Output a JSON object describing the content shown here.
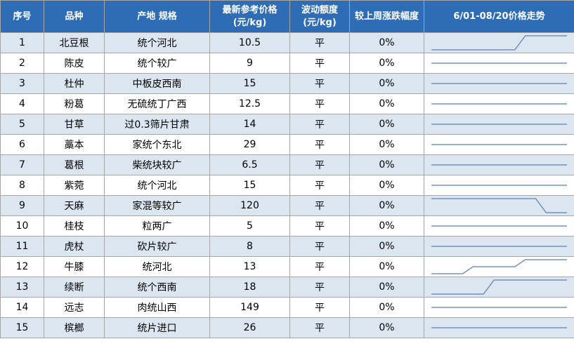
{
  "header": {
    "col_index": "序号",
    "col_variety": "品种",
    "col_origin": "产地 规格",
    "col_price_line1": "最新参考价格",
    "col_price_line2": "(元/kg)",
    "col_fluct_line1": "波动额度",
    "col_fluct_line2": "(元/kg)",
    "col_change": "较上周涨跌幅度",
    "col_trend": "6/01-08/20价格走势"
  },
  "rows": [
    {
      "index": "1",
      "variety": "北豆根",
      "origin": "统个河北",
      "price": "10.5",
      "fluct": "平",
      "change": "0%",
      "trend": [
        0,
        0,
        0,
        0,
        0,
        0,
        0,
        0,
        0,
        1,
        1,
        1,
        1,
        1
      ]
    },
    {
      "index": "2",
      "variety": "陈皮",
      "origin": "统个较广",
      "price": "9",
      "fluct": "平",
      "change": "0%",
      "trend": [
        0,
        0,
        0,
        0,
        0,
        0,
        0,
        0,
        0,
        0,
        0,
        0,
        0,
        0
      ]
    },
    {
      "index": "3",
      "variety": "杜仲",
      "origin": "中板皮西南",
      "price": "15",
      "fluct": "平",
      "change": "0%",
      "trend": [
        0,
        0,
        0,
        0,
        0,
        0,
        0,
        0,
        0,
        0,
        0,
        0,
        0,
        0
      ]
    },
    {
      "index": "4",
      "variety": "粉葛",
      "origin": "无硫统丁广西",
      "price": "12.5",
      "fluct": "平",
      "change": "0%",
      "trend": [
        0,
        0,
        0,
        0,
        0,
        0,
        0,
        0,
        0,
        0,
        0,
        0,
        0,
        0
      ]
    },
    {
      "index": "5",
      "variety": "甘草",
      "origin": "过0.3筛片甘肃",
      "price": "14",
      "fluct": "平",
      "change": "0%",
      "trend": [
        0,
        0,
        0,
        0,
        0,
        0,
        0,
        0,
        0,
        0,
        0,
        0,
        0,
        0
      ]
    },
    {
      "index": "6",
      "variety": "藁本",
      "origin": "家统个东北",
      "price": "29",
      "fluct": "平",
      "change": "0%",
      "trend": [
        0,
        0,
        0,
        0,
        0,
        0,
        0,
        0,
        0,
        0,
        0,
        0,
        0,
        0
      ]
    },
    {
      "index": "7",
      "variety": "葛根",
      "origin": "柴统块较广",
      "price": "6.5",
      "fluct": "平",
      "change": "0%",
      "trend": [
        0,
        0,
        0,
        0,
        0,
        0,
        0,
        0,
        0,
        0,
        0,
        0,
        0,
        0
      ]
    },
    {
      "index": "8",
      "variety": "紫菀",
      "origin": "统个河北",
      "price": "15",
      "fluct": "平",
      "change": "0%",
      "trend": [
        0,
        0,
        0,
        0,
        0,
        0,
        0,
        0,
        0,
        0,
        0,
        0,
        0,
        0
      ]
    },
    {
      "index": "9",
      "variety": "天麻",
      "origin": "家混等较广",
      "price": "120",
      "fluct": "平",
      "change": "0%",
      "trend": [
        1,
        1,
        1,
        1,
        1,
        1,
        1,
        1,
        1,
        1,
        1,
        0,
        0,
        0
      ]
    },
    {
      "index": "10",
      "variety": "桂枝",
      "origin": "粒两广",
      "price": "5",
      "fluct": "平",
      "change": "0%",
      "trend": [
        0,
        0,
        0,
        0,
        0,
        0,
        0,
        0,
        0,
        0,
        0,
        0,
        0,
        0
      ]
    },
    {
      "index": "11",
      "variety": "虎杖",
      "origin": "砍片较广",
      "price": "8",
      "fluct": "平",
      "change": "0%",
      "trend": [
        0,
        0,
        0,
        0,
        0,
        0,
        0,
        0,
        0,
        0,
        0,
        0,
        0,
        0
      ]
    },
    {
      "index": "12",
      "variety": "牛膝",
      "origin": "统河北",
      "price": "13",
      "fluct": "平",
      "change": "0%",
      "trend": [
        0,
        0,
        0,
        0,
        0.5,
        0.5,
        0.5,
        0.5,
        0.5,
        1,
        1,
        1,
        1,
        1
      ]
    },
    {
      "index": "13",
      "variety": "续断",
      "origin": "统个西南",
      "price": "18",
      "fluct": "平",
      "change": "0%",
      "trend": [
        0,
        0,
        0,
        0,
        0,
        0,
        1,
        1,
        1,
        1,
        1,
        1,
        1,
        1
      ]
    },
    {
      "index": "14",
      "variety": "远志",
      "origin": "肉统山西",
      "price": "149",
      "fluct": "平",
      "change": "0%",
      "trend": [
        0,
        0,
        0,
        0,
        0,
        0,
        0,
        0,
        0,
        0,
        0,
        0,
        0,
        0
      ]
    },
    {
      "index": "15",
      "variety": "槟榔",
      "origin": "统片进口",
      "price": "26",
      "fluct": "平",
      "change": "0%",
      "trend": [
        0,
        0,
        0,
        0,
        0,
        0,
        0,
        0,
        0,
        0,
        0,
        0,
        0,
        0
      ]
    }
  ],
  "colors": {
    "header_bg": "#2e6cb6",
    "header_text": "#ffffff",
    "row_stripe": "#dce6f1",
    "sparkline": "#5b7fb5",
    "border": "#a6a6a6"
  }
}
